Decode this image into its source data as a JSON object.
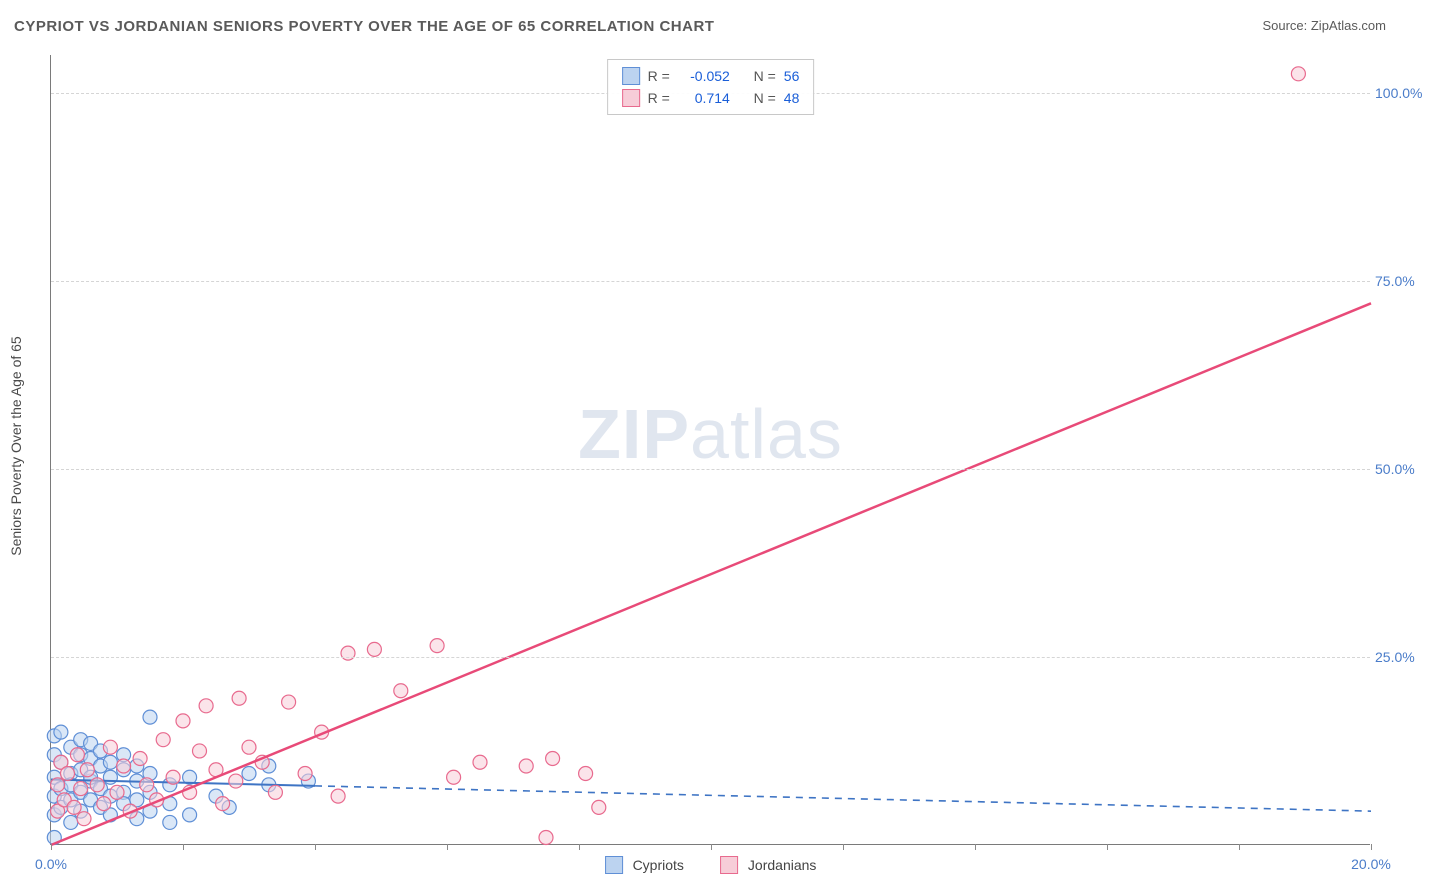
{
  "title": "CYPRIOT VS JORDANIAN SENIORS POVERTY OVER THE AGE OF 65 CORRELATION CHART",
  "source_label": "Source: ",
  "source_name": "ZipAtlas.com",
  "watermark_a": "ZIP",
  "watermark_b": "atlas",
  "chart": {
    "type": "scatter",
    "xlim": [
      0,
      20
    ],
    "ylim": [
      0,
      105
    ],
    "ytick_step": 25,
    "ytick_labels": [
      "25.0%",
      "50.0%",
      "75.0%",
      "100.0%"
    ],
    "ytick_values": [
      25,
      50,
      75,
      100
    ],
    "xtick_values": [
      0,
      2,
      4,
      6,
      8,
      10,
      12,
      14,
      16,
      18,
      20
    ],
    "xtick_labels_shown": {
      "0": "0.0%",
      "20": "20.0%"
    },
    "ylabel": "Seniors Poverty Over the Age of 65",
    "grid_color": "#d5d5d5",
    "axis_color": "#7a7a7a",
    "background_color": "#ffffff",
    "label_color": "#4a7cc9",
    "marker_radius": 7,
    "marker_stroke_width": 1.2,
    "series": [
      {
        "name": "Cypriots",
        "fill": "#bcd3f0",
        "stroke": "#5f8fd6",
        "fill_opacity": 0.55,
        "R": "-0.052",
        "N": "56",
        "trend": {
          "type": "solid_then_dashed",
          "solid_x_end": 4.0,
          "y_at_x0": 8.7,
          "y_at_xmax": 4.5,
          "color": "#3e74c4",
          "width": 2
        },
        "points": [
          [
            0.05,
            14.5
          ],
          [
            0.05,
            12.0
          ],
          [
            0.05,
            9.0
          ],
          [
            0.05,
            6.5
          ],
          [
            0.05,
            4.0
          ],
          [
            0.05,
            1.0
          ],
          [
            0.15,
            15.0
          ],
          [
            0.15,
            11.0
          ],
          [
            0.15,
            7.5
          ],
          [
            0.15,
            5.0
          ],
          [
            0.3,
            13.0
          ],
          [
            0.3,
            9.5
          ],
          [
            0.3,
            6.0
          ],
          [
            0.3,
            8.0
          ],
          [
            0.3,
            3.0
          ],
          [
            0.45,
            14.0
          ],
          [
            0.45,
            10.0
          ],
          [
            0.45,
            7.0
          ],
          [
            0.45,
            4.5
          ],
          [
            0.45,
            12.0
          ],
          [
            0.6,
            11.5
          ],
          [
            0.6,
            8.5
          ],
          [
            0.6,
            6.0
          ],
          [
            0.6,
            13.5
          ],
          [
            0.6,
            9.0
          ],
          [
            0.75,
            10.5
          ],
          [
            0.75,
            7.5
          ],
          [
            0.75,
            5.0
          ],
          [
            0.75,
            12.5
          ],
          [
            0.9,
            9.0
          ],
          [
            0.9,
            6.5
          ],
          [
            0.9,
            11.0
          ],
          [
            0.9,
            4.0
          ],
          [
            1.1,
            10.0
          ],
          [
            1.1,
            7.0
          ],
          [
            1.1,
            5.5
          ],
          [
            1.1,
            12.0
          ],
          [
            1.3,
            8.5
          ],
          [
            1.3,
            6.0
          ],
          [
            1.3,
            3.5
          ],
          [
            1.3,
            10.5
          ],
          [
            1.5,
            9.5
          ],
          [
            1.5,
            7.0
          ],
          [
            1.5,
            4.5
          ],
          [
            1.5,
            17.0
          ],
          [
            1.8,
            8.0
          ],
          [
            1.8,
            5.5
          ],
          [
            1.8,
            3.0
          ],
          [
            2.1,
            4.0
          ],
          [
            2.1,
            9.0
          ],
          [
            2.5,
            6.5
          ],
          [
            2.7,
            5.0
          ],
          [
            3.0,
            9.5
          ],
          [
            3.3,
            8.0
          ],
          [
            3.3,
            10.5
          ],
          [
            3.9,
            8.5
          ]
        ]
      },
      {
        "name": "Jordanians",
        "fill": "#f7cdd8",
        "stroke": "#e86a8e",
        "fill_opacity": 0.55,
        "R": "0.714",
        "N": "48",
        "trend": {
          "type": "solid",
          "y_at_x0": 0.0,
          "y_at_xmax": 72.0,
          "color": "#e84a78",
          "width": 2.5
        },
        "points": [
          [
            0.1,
            8.0
          ],
          [
            0.1,
            4.5
          ],
          [
            0.15,
            11.0
          ],
          [
            0.2,
            6.0
          ],
          [
            0.25,
            9.5
          ],
          [
            0.35,
            5.0
          ],
          [
            0.4,
            12.0
          ],
          [
            0.45,
            7.5
          ],
          [
            0.5,
            3.5
          ],
          [
            0.55,
            10.0
          ],
          [
            0.7,
            8.0
          ],
          [
            0.8,
            5.5
          ],
          [
            0.9,
            13.0
          ],
          [
            1.0,
            7.0
          ],
          [
            1.1,
            10.5
          ],
          [
            1.2,
            4.5
          ],
          [
            1.35,
            11.5
          ],
          [
            1.45,
            8.0
          ],
          [
            1.6,
            6.0
          ],
          [
            1.7,
            14.0
          ],
          [
            1.85,
            9.0
          ],
          [
            2.0,
            16.5
          ],
          [
            2.1,
            7.0
          ],
          [
            2.25,
            12.5
          ],
          [
            2.35,
            18.5
          ],
          [
            2.5,
            10.0
          ],
          [
            2.6,
            5.5
          ],
          [
            2.8,
            8.5
          ],
          [
            2.85,
            19.5
          ],
          [
            3.0,
            13.0
          ],
          [
            3.2,
            11.0
          ],
          [
            3.4,
            7.0
          ],
          [
            3.6,
            19.0
          ],
          [
            3.85,
            9.5
          ],
          [
            4.1,
            15.0
          ],
          [
            4.35,
            6.5
          ],
          [
            4.5,
            25.5
          ],
          [
            4.9,
            26.0
          ],
          [
            5.3,
            20.5
          ],
          [
            5.85,
            26.5
          ],
          [
            6.1,
            9.0
          ],
          [
            6.5,
            11.0
          ],
          [
            7.2,
            10.5
          ],
          [
            7.5,
            1.0
          ],
          [
            7.6,
            11.5
          ],
          [
            8.1,
            9.5
          ],
          [
            8.3,
            5.0
          ],
          [
            18.9,
            102.5
          ]
        ]
      }
    ]
  },
  "legend_bottom": [
    {
      "label": "Cypriots",
      "fill": "#bcd3f0",
      "stroke": "#5f8fd6"
    },
    {
      "label": "Jordanians",
      "fill": "#f7cdd8",
      "stroke": "#e86a8e"
    }
  ],
  "stats_labels": {
    "r": "R =",
    "n": "N ="
  }
}
